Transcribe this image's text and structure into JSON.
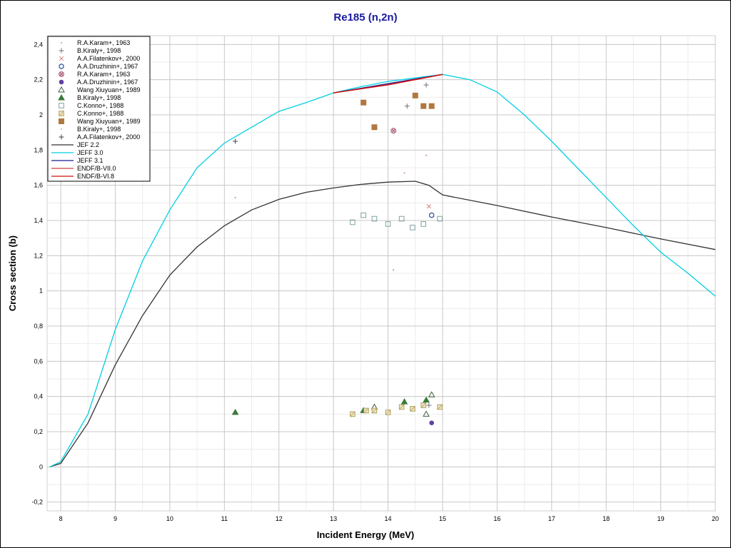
{
  "chart_data": {
    "type": "scatter",
    "title": "Re185 (n,2n)",
    "xlabel": "Incident Energy (MeV)",
    "ylabel": "Cross section (b)",
    "xlim": [
      7.75,
      20
    ],
    "ylim": [
      -0.25,
      2.45
    ],
    "x_ticks": [
      8,
      9,
      10,
      11,
      12,
      13,
      14,
      15,
      16,
      17,
      18,
      19,
      20
    ],
    "x_tick_labels": [
      "8",
      "9",
      "10",
      "11",
      "12",
      "13",
      "14",
      "15",
      "16",
      "17",
      "18",
      "19",
      "20"
    ],
    "y_ticks": [
      -0.2,
      0,
      0.2,
      0.4,
      0.6,
      0.8,
      1,
      1.2,
      1.4,
      1.6,
      1.8,
      2,
      2.2,
      2.4
    ],
    "y_tick_labels": [
      "-0,2",
      "0",
      "0,2",
      "0,4",
      "0,6",
      "0,8",
      "1",
      "1,2",
      "1,4",
      "1,6",
      "1,8",
      "2",
      "2,2",
      "2,4"
    ],
    "grid": true,
    "legend_position": "top-left",
    "series": [
      {
        "name": "R.A.Karam+, 1963",
        "kind": "points",
        "marker": "dot",
        "color": "#c07050",
        "points": [
          [
            11.2,
            1.53
          ],
          [
            14.3,
            1.67
          ],
          [
            14.7,
            1.77
          ],
          [
            14.1,
            1.12
          ]
        ]
      },
      {
        "name": "B.Kiraly+, 1998",
        "kind": "points",
        "marker": "plus",
        "color": "#707080",
        "points": [
          [
            14.7,
            2.17
          ],
          [
            14.35,
            2.05
          ],
          [
            14.75,
            0.35
          ]
        ]
      },
      {
        "name": "A.A.Filatenkov+, 2000",
        "kind": "points",
        "marker": "x",
        "color": "#d08080",
        "points": [
          [
            14.75,
            1.48
          ]
        ]
      },
      {
        "name": "A.A.Druzhinin+, 1967",
        "kind": "points",
        "marker": "hexagon",
        "color": "#3050a0",
        "points": [
          [
            14.8,
            1.43
          ]
        ]
      },
      {
        "name": "R.A.Karam+, 1963",
        "kind": "points",
        "marker": "circle-x",
        "color": "#a05070",
        "points": [
          [
            14.1,
            1.91
          ]
        ]
      },
      {
        "name": "A.A.Druzhinin+, 1967",
        "kind": "points",
        "marker": "filled-circle",
        "color": "#6040a0",
        "points": [
          [
            14.8,
            0.25
          ]
        ]
      },
      {
        "name": "Wang Xiuyuan+, 1989",
        "kind": "points",
        "marker": "open-triangle",
        "color": "#406040",
        "points": [
          [
            13.75,
            0.34
          ],
          [
            14.8,
            0.41
          ],
          [
            14.7,
            0.3
          ]
        ]
      },
      {
        "name": "B.Kiraly+, 1998",
        "kind": "points",
        "marker": "filled-triangle",
        "color": "#3a7a3a",
        "points": [
          [
            11.2,
            0.31
          ],
          [
            13.55,
            0.32
          ],
          [
            14.3,
            0.37
          ],
          [
            14.7,
            0.38
          ]
        ]
      },
      {
        "name": "C.Konno+, 1988",
        "kind": "points",
        "marker": "open-square",
        "color": "#80a0a0",
        "points": [
          [
            13.35,
            1.39
          ],
          [
            13.55,
            1.43
          ],
          [
            13.75,
            1.41
          ],
          [
            14.0,
            1.38
          ],
          [
            14.25,
            1.41
          ],
          [
            14.45,
            1.36
          ],
          [
            14.65,
            1.38
          ],
          [
            14.95,
            1.41
          ]
        ]
      },
      {
        "name": "C.Konno+, 1988",
        "kind": "points",
        "marker": "hatched-square",
        "color": "#b0a060",
        "points": [
          [
            13.35,
            0.3
          ],
          [
            13.6,
            0.32
          ],
          [
            13.75,
            0.32
          ],
          [
            14.0,
            0.31
          ],
          [
            14.25,
            0.34
          ],
          [
            14.45,
            0.33
          ],
          [
            14.65,
            0.35
          ],
          [
            14.95,
            0.34
          ]
        ]
      },
      {
        "name": "Wang Xiuyuan+, 1989",
        "kind": "points",
        "marker": "filled-square",
        "color": "#b07840",
        "points": [
          [
            13.55,
            2.07
          ],
          [
            13.75,
            1.93
          ],
          [
            14.5,
            2.11
          ],
          [
            14.65,
            2.05
          ],
          [
            14.8,
            2.05
          ]
        ]
      },
      {
        "name": "B.Kiraly+, 1998",
        "kind": "points",
        "marker": "dot",
        "color": "#90a0a0",
        "points": []
      },
      {
        "name": "A.A.Filatenkov+, 2000",
        "kind": "points",
        "marker": "plus",
        "color": "#404040",
        "points": [
          [
            11.2,
            1.85
          ]
        ]
      },
      {
        "name": "JEF 2.2",
        "kind": "line",
        "color": "#333333",
        "points": [
          [
            7.8,
            0.0
          ],
          [
            8.0,
            0.02
          ],
          [
            8.5,
            0.25
          ],
          [
            9.0,
            0.58
          ],
          [
            9.5,
            0.86
          ],
          [
            10.0,
            1.09
          ],
          [
            10.5,
            1.25
          ],
          [
            11.0,
            1.37
          ],
          [
            11.5,
            1.46
          ],
          [
            12.0,
            1.52
          ],
          [
            12.5,
            1.56
          ],
          [
            13.0,
            1.585
          ],
          [
            13.5,
            1.605
          ],
          [
            14.0,
            1.618
          ],
          [
            14.5,
            1.623
          ],
          [
            14.75,
            1.6
          ],
          [
            15.0,
            1.545
          ],
          [
            16.0,
            1.485
          ],
          [
            17.0,
            1.42
          ],
          [
            18.0,
            1.36
          ],
          [
            19.0,
            1.295
          ],
          [
            20.0,
            1.235
          ]
        ]
      },
      {
        "name": "JEFF 3.0",
        "kind": "line",
        "color": "#00d0e0",
        "points": [
          [
            7.8,
            0.0
          ],
          [
            8.0,
            0.03
          ],
          [
            8.5,
            0.3
          ],
          [
            9.0,
            0.78
          ],
          [
            9.5,
            1.17
          ],
          [
            10.0,
            1.46
          ],
          [
            10.5,
            1.7
          ],
          [
            11.0,
            1.84
          ],
          [
            11.5,
            1.93
          ],
          [
            12.0,
            2.02
          ],
          [
            12.5,
            2.07
          ],
          [
            13.0,
            2.125
          ],
          [
            13.5,
            2.16
          ],
          [
            14.0,
            2.19
          ],
          [
            14.5,
            2.21
          ],
          [
            15.0,
            2.23
          ],
          [
            15.5,
            2.2
          ],
          [
            16.0,
            2.13
          ],
          [
            16.5,
            2.0
          ],
          [
            17.0,
            1.85
          ],
          [
            17.5,
            1.69
          ],
          [
            18.0,
            1.53
          ],
          [
            18.5,
            1.37
          ],
          [
            19.0,
            1.22
          ],
          [
            19.5,
            1.1
          ],
          [
            20.0,
            0.97
          ]
        ]
      },
      {
        "name": "JEFF 3.1",
        "kind": "line",
        "color": "#1a1a90",
        "points": [
          [
            13.0,
            2.125
          ],
          [
            15.0,
            2.23
          ]
        ]
      },
      {
        "name": "ENDF/B-VII.0",
        "kind": "line",
        "color": "#d04040",
        "points": [
          [
            13.0,
            2.125
          ],
          [
            14.0,
            2.17
          ],
          [
            15.0,
            2.23
          ]
        ]
      },
      {
        "name": "ENDF/B-VI.8",
        "kind": "line",
        "color": "#d01010",
        "points": [
          [
            13.0,
            2.125
          ],
          [
            14.0,
            2.172
          ],
          [
            15.0,
            2.23
          ]
        ]
      }
    ]
  }
}
